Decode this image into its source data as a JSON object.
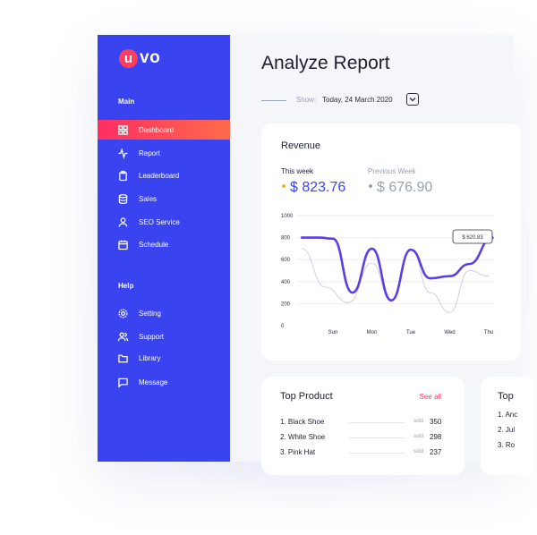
{
  "brand": {
    "logo_letter": "u",
    "logo_rest": "vo"
  },
  "sidebar": {
    "main_label": "Main",
    "help_label": "Help",
    "main_items": [
      {
        "label": "Dashboard",
        "icon": "grid-icon",
        "active": true
      },
      {
        "label": "Report",
        "icon": "pulse-icon"
      },
      {
        "label": "Leaderboard",
        "icon": "clipboard-icon"
      },
      {
        "label": "Sales",
        "icon": "database-icon"
      },
      {
        "label": "SEO Service",
        "icon": "user-icon"
      },
      {
        "label": "Schedule",
        "icon": "calendar-icon"
      }
    ],
    "help_items": [
      {
        "label": "Setting",
        "icon": "gear-icon"
      },
      {
        "label": "Support",
        "icon": "users-icon"
      },
      {
        "label": "Library",
        "icon": "folder-icon"
      },
      {
        "label": "Message",
        "icon": "message-icon"
      }
    ]
  },
  "header": {
    "title": "Analyze Report",
    "show_label": "Show:",
    "show_value": "Today, 24 March 2020"
  },
  "revenue": {
    "title": "Revenue",
    "this_week_label": "This week",
    "this_week_value": "$ 823.76",
    "previous_week_label": "Previous Week",
    "previous_week_value": "$ 676.90",
    "tooltip": "$ 620.83"
  },
  "chart_data": {
    "type": "line",
    "y_ticks": [
      "1000",
      "800",
      "600",
      "400",
      "200",
      "0"
    ],
    "x_ticks": [
      "Sun",
      "Mon",
      "Tue",
      "Wed",
      "Thu"
    ],
    "ylim": [
      0,
      1000
    ],
    "series": [
      {
        "x": [
          -0.8,
          -0.35,
          0,
          0.5,
          1,
          1.5,
          2,
          2.5,
          3,
          3.5,
          4.1
        ],
        "values": [
          800,
          800,
          790,
          300,
          700,
          230,
          690,
          430,
          450,
          560,
          800
        ]
      },
      {
        "x": [
          -0.8,
          -0.2,
          0.4,
          1,
          1.5,
          2,
          2.5,
          3,
          3.5,
          4
        ],
        "values": [
          700,
          350,
          210,
          570,
          220,
          700,
          300,
          120,
          500,
          450
        ]
      }
    ],
    "colors": {
      "this_week": "#5b3fe0",
      "previous_week": "#c9cbe6"
    }
  },
  "top_product": {
    "title": "Top Product",
    "see_all": "See all",
    "sold_label": "sold",
    "items": [
      {
        "name": "1. Black Shoe",
        "sold": "350"
      },
      {
        "name": "2. White Shoe",
        "sold": "298"
      },
      {
        "name": "3. Pink Hat",
        "sold": "237"
      }
    ]
  },
  "top_second": {
    "title": "Top",
    "items": [
      "1. Anc",
      "2. Jul",
      "3. Ro"
    ]
  },
  "colors": {
    "sidebar": "#3a43f0",
    "accent": "#ff2e63",
    "primary": "#3a43f0"
  }
}
